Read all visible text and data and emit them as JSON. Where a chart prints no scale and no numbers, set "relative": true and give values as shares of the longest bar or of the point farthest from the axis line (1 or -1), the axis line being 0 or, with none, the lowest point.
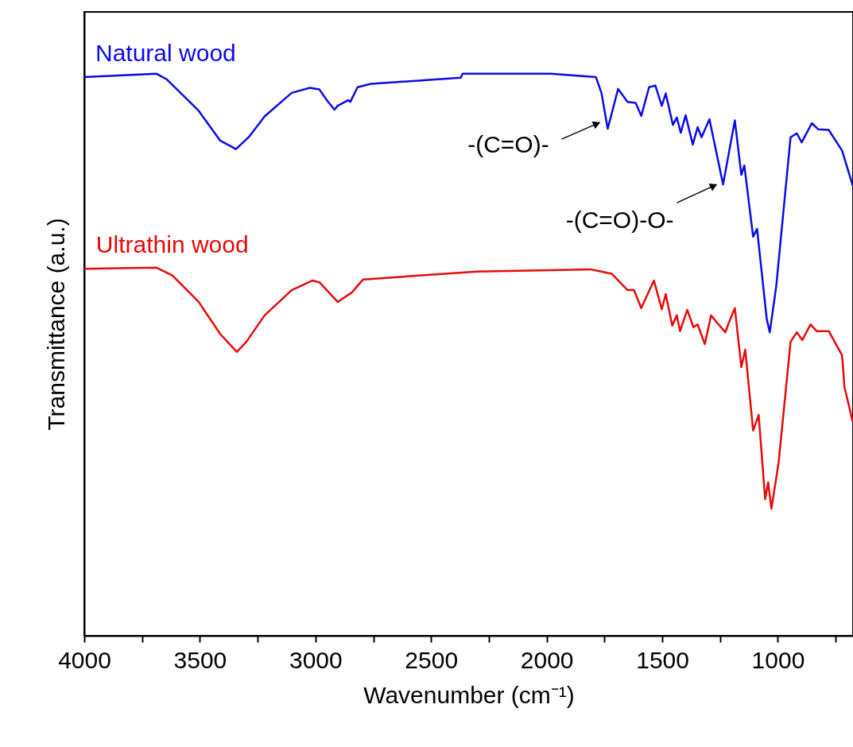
{
  "chart_data": {
    "type": "line",
    "xlabel": "Wavenumber (cm⁻¹)",
    "ylabel": "Transmittance (a.u.)",
    "relative": true,
    "tick_labels": "x",
    "xlim": [
      4000,
      675
    ],
    "xticks": [
      4000,
      {
        "value": 3750,
        "label": null
      },
      3500,
      {
        "value": 3250,
        "label": null
      },
      3000,
      {
        "value": 2750,
        "label": null
      },
      2500,
      {
        "value": 2250,
        "label": null
      },
      2000,
      {
        "value": 1750,
        "label": null
      },
      1500,
      {
        "value": 1250,
        "label": null
      },
      1000,
      {
        "value": 750,
        "label": null
      }
    ],
    "series": [
      {
        "name": "Natural wood",
        "color": "#0a0ae6",
        "x": [
          4000,
          3687,
          3643,
          3505,
          3412,
          3344,
          3289,
          3220,
          3103,
          3024,
          2983,
          2949,
          2918,
          2904,
          2859,
          2849,
          2818,
          2760,
          2371,
          2364,
          1983,
          1787,
          1763,
          1736,
          1691,
          1650,
          1615,
          1591,
          1557,
          1530,
          1502,
          1485,
          1454,
          1437,
          1420,
          1399,
          1368,
          1347,
          1330,
          1296,
          1237,
          1186,
          1158,
          1145,
          1107,
          1090,
          1048,
          1035,
          1007,
          945,
          918,
          897,
          853,
          825,
          780,
          722,
          677
        ],
        "values": [
          0.994,
          1.0,
          0.99,
          0.934,
          0.881,
          0.866,
          0.887,
          0.924,
          0.966,
          0.975,
          0.972,
          0.952,
          0.936,
          0.943,
          0.953,
          0.95,
          0.976,
          0.982,
          0.993,
          1.0,
          1.0,
          0.994,
          0.966,
          0.902,
          0.973,
          0.95,
          0.948,
          0.925,
          0.976,
          0.979,
          0.943,
          0.965,
          0.909,
          0.922,
          0.895,
          0.926,
          0.874,
          0.905,
          0.887,
          0.919,
          0.803,
          0.917,
          0.82,
          0.837,
          0.71,
          0.724,
          0.563,
          0.54,
          0.622,
          0.887,
          0.894,
          0.878,
          0.912,
          0.901,
          0.9,
          0.863,
          0.802
        ]
      },
      {
        "name": "Ultrathin wood",
        "color": "#e60a0a",
        "x": [
          3997,
          3687,
          3619,
          3505,
          3412,
          3340,
          3299,
          3220,
          3103,
          3014,
          2983,
          2904,
          2842,
          2794,
          2303,
          1811,
          1718,
          1650,
          1622,
          1591,
          1536,
          1502,
          1485,
          1457,
          1437,
          1423,
          1392,
          1365,
          1347,
          1316,
          1289,
          1261,
          1227,
          1213,
          1186,
          1158,
          1141,
          1107,
          1083,
          1055,
          1042,
          1028,
          997,
          945,
          918,
          894,
          859,
          832,
          780,
          722,
          712,
          677
        ],
        "values": [
          0.653,
          0.655,
          0.641,
          0.594,
          0.537,
          0.505,
          0.523,
          0.57,
          0.615,
          0.632,
          0.629,
          0.594,
          0.611,
          0.634,
          0.648,
          0.652,
          0.644,
          0.615,
          0.615,
          0.583,
          0.632,
          0.581,
          0.608,
          0.552,
          0.57,
          0.542,
          0.58,
          0.549,
          0.554,
          0.519,
          0.57,
          0.556,
          0.54,
          0.556,
          0.583,
          0.478,
          0.509,
          0.365,
          0.393,
          0.243,
          0.273,
          0.226,
          0.307,
          0.523,
          0.54,
          0.526,
          0.554,
          0.542,
          0.542,
          0.499,
          0.443,
          0.382
        ]
      }
    ],
    "annotations": [
      {
        "text": "-(C=O)-",
        "x": 1736,
        "y": 0.902
      },
      {
        "text": "-(C=O)-O-",
        "x": 1237,
        "y": 0.803
      }
    ]
  }
}
